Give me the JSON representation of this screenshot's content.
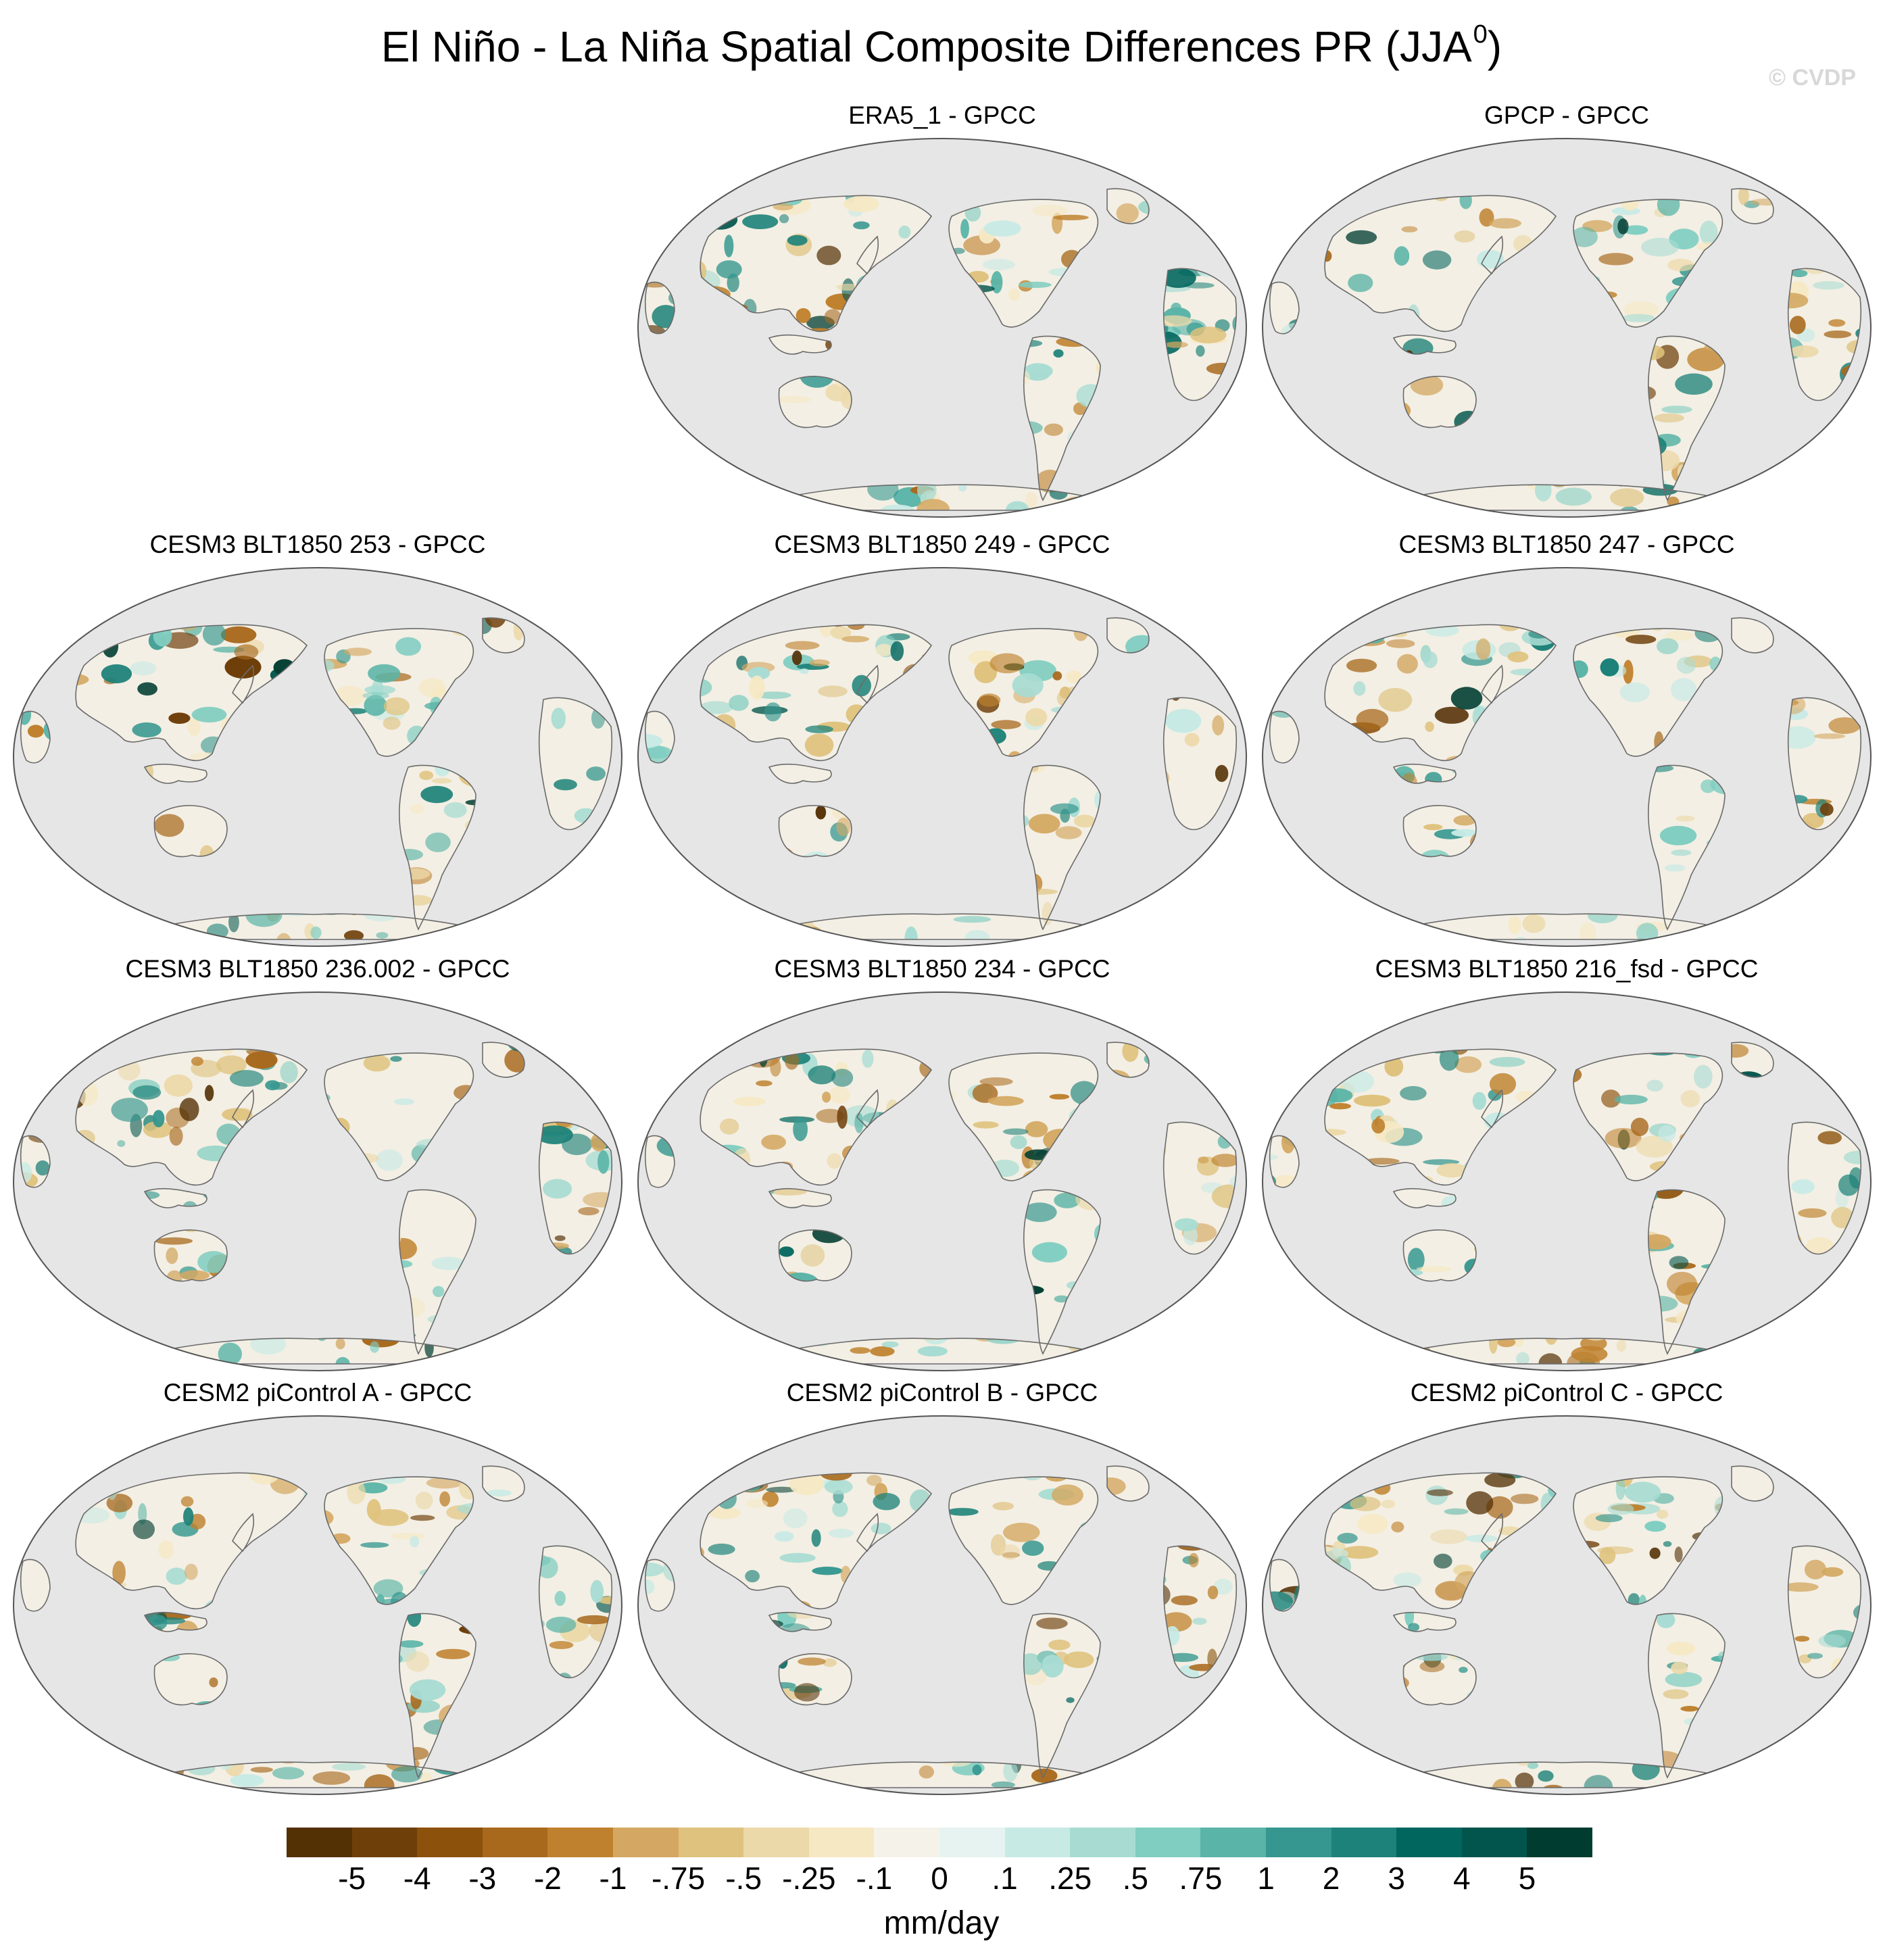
{
  "figure": {
    "title_main": "El Niño - La Niña Spatial Composite Differences PR (JJA",
    "title_sup": "0",
    "title_end": ")",
    "watermark": "© CVDP"
  },
  "panels": [
    {
      "title": "ERA5_1 - GPCC"
    },
    {
      "title": "GPCP - GPCC"
    },
    {
      "title": "CESM3 BLT1850 253 - GPCC"
    },
    {
      "title": "CESM3 BLT1850 249 - GPCC"
    },
    {
      "title": "CESM3 BLT1850 247 - GPCC"
    },
    {
      "title": "CESM3 BLT1850 236.002 - GPCC"
    },
    {
      "title": "CESM3 BLT1850 234 - GPCC"
    },
    {
      "title": "CESM3 BLT1850 216_fsd - GPCC"
    },
    {
      "title": "CESM2 piControl A - GPCC"
    },
    {
      "title": "CESM2 piControl B - GPCC"
    },
    {
      "title": "CESM2 piControl C - GPCC"
    }
  ],
  "colorbar": {
    "unit": "mm/day",
    "labels": [
      "-5",
      "-4",
      "-3",
      "-2",
      "-1",
      "-.75",
      "-.5",
      "-.25",
      "-.1",
      "0",
      ".1",
      ".25",
      ".5",
      ".75",
      "1",
      "2",
      "3",
      "4",
      "5"
    ],
    "colors": [
      "#543005",
      "#6f3f0a",
      "#8c510a",
      "#a8691d",
      "#bf812d",
      "#d4a862",
      "#dfc27d",
      "#ecd9a9",
      "#f6e8c3",
      "#f5f2ea",
      "#e6f3f1",
      "#c7eae5",
      "#a8dcd3",
      "#80cdc1",
      "#5ab4a7",
      "#35978f",
      "#1d8279",
      "#01665e",
      "#02554c",
      "#003c30"
    ]
  }
}
